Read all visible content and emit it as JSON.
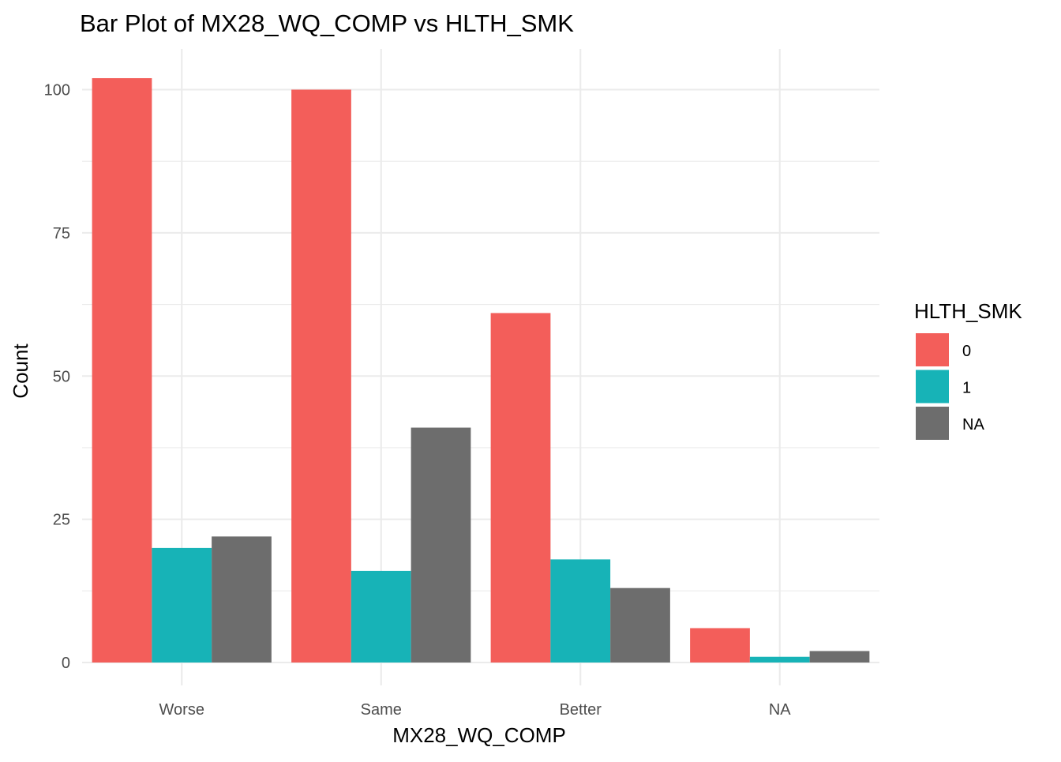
{
  "chart_data": {
    "type": "bar",
    "title": "Bar Plot of MX28_WQ_COMP vs HLTH_SMK",
    "xlabel": "MX28_WQ_COMP",
    "ylabel": "Count",
    "categories": [
      "Worse",
      "Same",
      "Better",
      "NA"
    ],
    "series": [
      {
        "name": "0",
        "color": "#F35E5A",
        "values": [
          102,
          100,
          61,
          6
        ]
      },
      {
        "name": "1",
        "color": "#17B3B7",
        "values": [
          20,
          16,
          18,
          1
        ]
      },
      {
        "name": "NA",
        "color": "#6D6D6D",
        "values": [
          22,
          41,
          13,
          2
        ]
      }
    ],
    "ylim": [
      0,
      107
    ],
    "yticks": [
      0,
      25,
      50,
      75,
      100
    ],
    "grid": true,
    "legend": {
      "title": "HLTH_SMK",
      "placement": "right"
    }
  }
}
